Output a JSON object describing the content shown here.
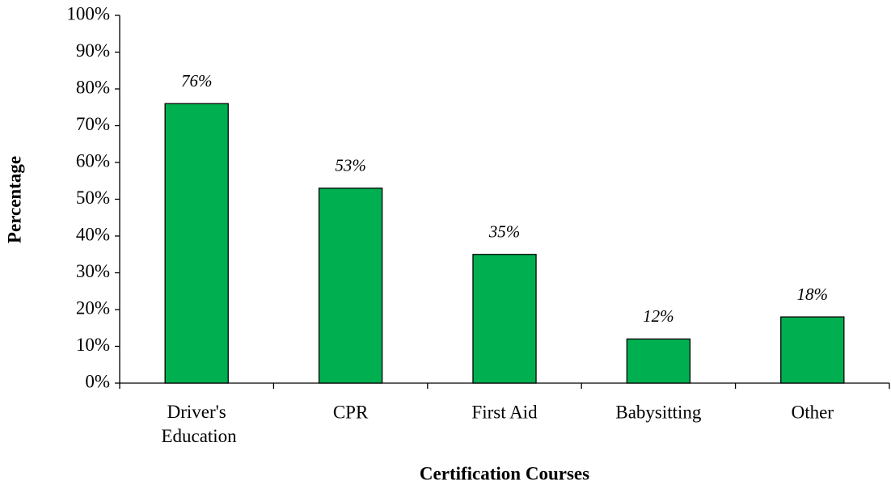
{
  "chart_data": {
    "type": "bar",
    "x_label": "Certification Courses",
    "y_label": "Percentage",
    "categories": [
      "Driver's Education",
      "CPR",
      "First Aid",
      "Babysitting",
      "Other"
    ],
    "values": [
      76,
      53,
      35,
      12,
      18
    ],
    "value_labels": [
      "76%",
      "53%",
      "35%",
      "12%",
      "18%"
    ],
    "color": "#00b050",
    "ylim": [
      0,
      100
    ],
    "yticks": [
      {
        "value": 0,
        "label": "0%"
      },
      {
        "value": 10,
        "label": "10%"
      },
      {
        "value": 20,
        "label": "20%"
      },
      {
        "value": 30,
        "label": "30%"
      },
      {
        "value": 40,
        "label": "40%"
      },
      {
        "value": 50,
        "label": "50%"
      },
      {
        "value": 60,
        "label": "60%"
      },
      {
        "value": 70,
        "label": "70%"
      },
      {
        "value": 80,
        "label": "80%"
      },
      {
        "value": 90,
        "label": "90%"
      },
      {
        "value": 100,
        "label": "100%"
      }
    ],
    "grid": false
  }
}
